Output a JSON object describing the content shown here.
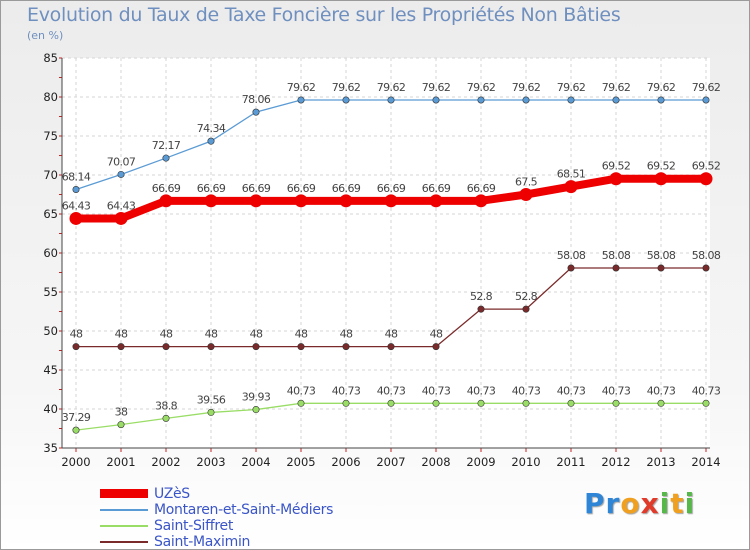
{
  "title": "Evolution du Taux de Taxe Foncière sur les Propriétés Non Bâties",
  "subtitle": "(en %)",
  "logo": {
    "letters": [
      "P",
      "r",
      "o",
      "x",
      "i",
      "t",
      "i"
    ],
    "colors": [
      "#2f86d6",
      "#2f86d6",
      "#f0a020",
      "#e03a2a",
      "#56b848",
      "#f0a020",
      "#56b848"
    ]
  },
  "chart_data": {
    "type": "line",
    "title": "Evolution du Taux de Taxe Foncière sur les Propriétés Non Bâties",
    "ylabel": "(en %)",
    "xlabel": "",
    "ylim": [
      35,
      85
    ],
    "yticks": [
      35,
      40,
      45,
      50,
      55,
      60,
      65,
      70,
      75,
      80,
      85
    ],
    "x": [
      "2000",
      "2001",
      "2002",
      "2003",
      "2004",
      "2005",
      "2006",
      "2007",
      "2008",
      "2009",
      "2010",
      "2011",
      "2012",
      "2013",
      "2014"
    ],
    "grid": true,
    "legend_position": "bottom-left",
    "series": [
      {
        "name": "Montaren-et-Saint-Médiers",
        "color": "#5b9bd5",
        "values": [
          68.14,
          70.07,
          72.17,
          74.34,
          78.06,
          79.62,
          79.62,
          79.62,
          79.62,
          79.62,
          79.62,
          79.62,
          79.62,
          79.62,
          79.62
        ],
        "labels": [
          "68.14",
          "70.07",
          "72.17",
          "74.34",
          "78.06",
          "79.62",
          "79.62",
          "79.62",
          "79.62",
          "79.62",
          "79.62",
          "79.62",
          "79.62",
          "79.62",
          "79.62"
        ]
      },
      {
        "name": "Saint-Siffret",
        "color": "#99dd66",
        "values": [
          37.29,
          38,
          38.8,
          39.56,
          39.93,
          40.73,
          40.73,
          40.73,
          40.73,
          40.73,
          40.73,
          40.73,
          40.73,
          40.73,
          40.73
        ],
        "labels": [
          "37.29",
          "38",
          "38.8",
          "39.56",
          "39.93",
          "40.73",
          "40.73",
          "40.73",
          "40.73",
          "40.73",
          "40.73",
          "40.73",
          "40.73",
          "40.73",
          "40.73"
        ]
      },
      {
        "name": "Saint-Maximin",
        "color": "#7a2a2a",
        "values": [
          48,
          48,
          48,
          48,
          48,
          48,
          48,
          48,
          48,
          52.8,
          52.8,
          58.08,
          58.08,
          58.08,
          58.08
        ],
        "labels": [
          "48",
          "48",
          "48",
          "48",
          "48",
          "48",
          "48",
          "48",
          "48",
          "52.8",
          "52.8",
          "58.08",
          "58.08",
          "58.08",
          "58.08"
        ]
      },
      {
        "name": "UZèS",
        "color": "#ee0000",
        "values": [
          64.43,
          64.43,
          66.69,
          66.69,
          66.69,
          66.69,
          66.69,
          66.69,
          66.69,
          66.69,
          67.5,
          68.51,
          69.52,
          69.52,
          69.52
        ],
        "labels": [
          "64.43",
          "64.43",
          "66.69",
          "66.69",
          "66.69",
          "66.69",
          "66.69",
          "66.69",
          "66.69",
          "66.69",
          "67.5",
          "68.51",
          "69.52",
          "69.52",
          "69.52"
        ]
      }
    ],
    "legend_order": [
      3,
      0,
      1,
      2
    ]
  }
}
